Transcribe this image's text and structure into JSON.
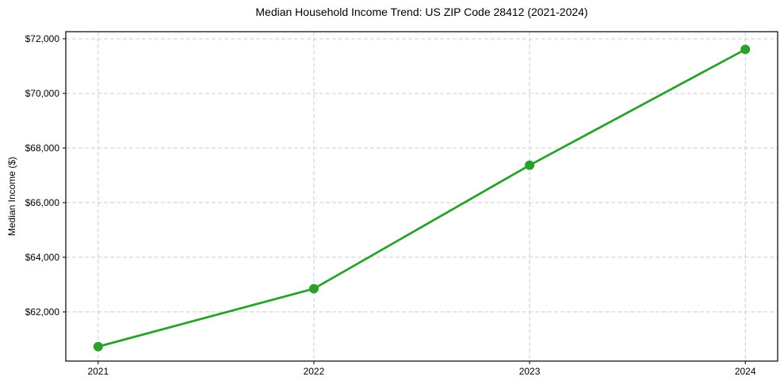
{
  "chart_data": {
    "type": "line",
    "title": "Median Household Income Trend: US ZIP Code 28412 (2021-2024)",
    "xlabel": "",
    "ylabel": "Median Income ($)",
    "series": [
      {
        "name": "Median Household Income",
        "x": [
          2021,
          2022,
          2023,
          2024
        ],
        "values": [
          60730,
          62850,
          67370,
          71610
        ]
      }
    ],
    "xticks": [
      2021,
      2022,
      2023,
      2024
    ],
    "xtick_labels": [
      "2021",
      "2022",
      "2023",
      "2024"
    ],
    "yticks": [
      62000,
      64000,
      66000,
      68000,
      70000,
      72000
    ],
    "ytick_labels": [
      "$62,000",
      "$64,000",
      "$66,000",
      "$68,000",
      "$70,000",
      "$72,000"
    ],
    "xlim": [
      2020.85,
      2024.15
    ],
    "ylim": [
      60200,
      72260
    ],
    "grid": true,
    "grid_style": "dashed",
    "legend": "none",
    "colors": {
      "line": "#2ca02c",
      "marker": "#2ca02c",
      "grid": "#cccccc",
      "spine": "#000000",
      "text": "#000000",
      "background": "#ffffff"
    }
  }
}
